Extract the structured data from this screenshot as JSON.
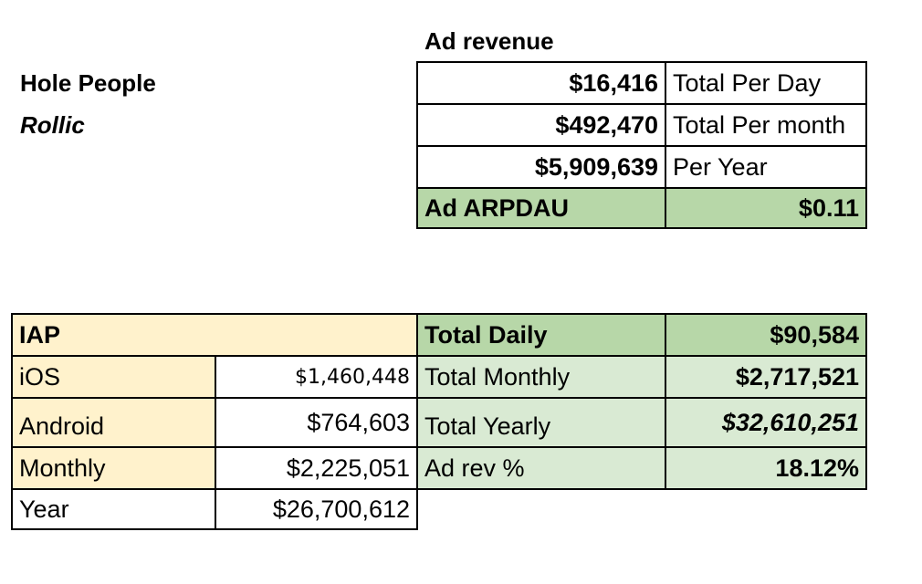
{
  "header": {
    "game_title": "Hole People",
    "publisher": "Rollic"
  },
  "ad_revenue": {
    "title": "Ad revenue",
    "rows": [
      {
        "value": "$16,416",
        "label": "Total Per Day"
      },
      {
        "value": "$492,470",
        "label": "Total Per month"
      },
      {
        "value": "$5,909,639",
        "label": "Per Year"
      }
    ],
    "arpdau_label": "Ad ARPDAU",
    "arpdau_value": "$0.11"
  },
  "iap": {
    "title": "IAP",
    "rows": [
      {
        "label": "iOS",
        "value": "$1,460,448"
      },
      {
        "label": "Android",
        "value": "$764,603"
      },
      {
        "label": "Monthly",
        "value": "$2,225,051"
      },
      {
        "label": "Year",
        "value": "$26,700,612"
      }
    ]
  },
  "totals": {
    "rows": [
      {
        "label": "Total Daily",
        "value": "$90,584"
      },
      {
        "label": "Total Monthly",
        "value": "$2,717,521"
      },
      {
        "label": "Total Yearly",
        "value": "$32,610,251"
      },
      {
        "label": "Ad rev %",
        "value": "18.12%"
      }
    ]
  }
}
